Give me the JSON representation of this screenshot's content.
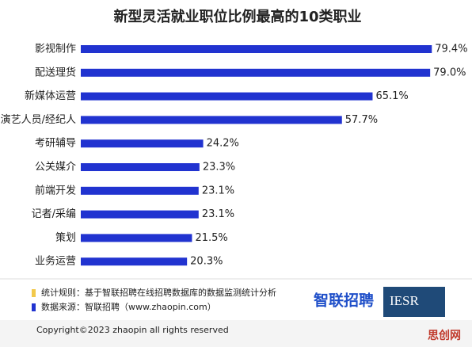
{
  "chart_data": {
    "type": "bar",
    "orientation": "horizontal",
    "title": "新型灵活就业职位比例最高的10类职业",
    "categories": [
      "影视制作",
      "配送理货",
      "新媒体运营",
      "演艺人员/经纪人",
      "考研辅导",
      "公关媒介",
      "前端开发",
      "记者/采编",
      "策划",
      "业务运营"
    ],
    "values": [
      79.4,
      79.0,
      65.1,
      57.7,
      24.2,
      23.3,
      23.1,
      23.1,
      21.5,
      20.3
    ],
    "value_labels": [
      "79.4%",
      "79.0%",
      "65.1%",
      "57.7%",
      "24.2%",
      "23.3%",
      "23.1%",
      "23.1%",
      "21.5%",
      "20.3%"
    ],
    "color": "#2133d0"
  },
  "notes": [
    {
      "text": "统计规则：基于智联招聘在线招聘数据库的数据监测统计分析",
      "color": "#f2c94c"
    },
    {
      "text": "数据来源：智联招聘（www.zhaopin.com）",
      "color": "#2133d0"
    }
  ],
  "logos": [
    "智联招聘",
    "IESR"
  ],
  "copyright": "Copyright©2023 zhaopin all rights reserved",
  "watermark": "思创网"
}
